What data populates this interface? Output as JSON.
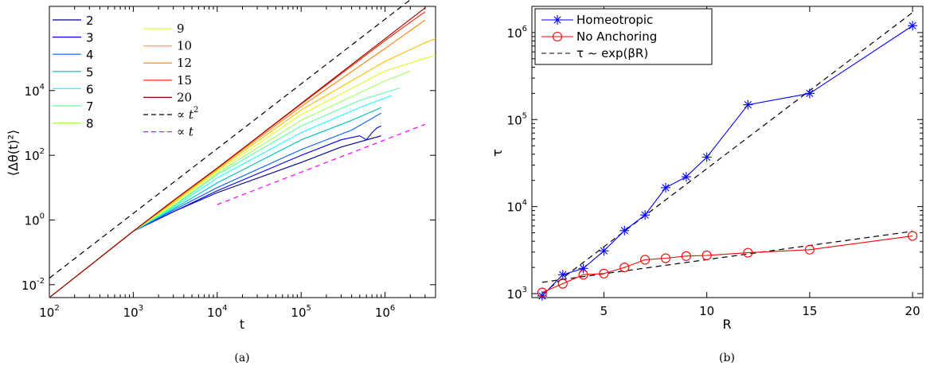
{
  "chart_data": [
    {
      "type": "line",
      "panel": "a",
      "caption": "(a)",
      "xlabel": "t",
      "ylabel": "⟨Δθ(t)²⟩",
      "xscale": "log",
      "yscale": "log",
      "xlim": [
        100,
        4000000
      ],
      "ylim": [
        0.004,
        4000000
      ],
      "x_ticks": [
        {
          "base": "10",
          "exp": "2",
          "value": 100
        },
        {
          "base": "10",
          "exp": "3",
          "value": 1000
        },
        {
          "base": "10",
          "exp": "4",
          "value": 10000
        },
        {
          "base": "10",
          "exp": "5",
          "value": 100000
        },
        {
          "base": "10",
          "exp": "6",
          "value": 1000000
        }
      ],
      "y_ticks": [
        {
          "base": "10",
          "exp": "-2",
          "value": 0.01
        },
        {
          "base": "10",
          "exp": "0",
          "value": 1
        },
        {
          "base": "10",
          "exp": "2",
          "value": 100
        },
        {
          "base": "10",
          "exp": "4",
          "value": 10000
        }
      ],
      "legend_placement": "top-left",
      "legend_col1": [
        "2",
        "3",
        "4",
        "5",
        "6",
        "7",
        "8"
      ],
      "legend_col2": [
        "9",
        "10",
        "12",
        "15",
        "20"
      ],
      "series": [
        {
          "name": "2",
          "color": "#00008f",
          "x": [
            100,
            1000,
            3000,
            10000,
            100000,
            300000,
            900000
          ],
          "y": [
            0.004,
            0.45,
            1.8,
            7,
            60,
            180,
            400
          ]
        },
        {
          "name": "3",
          "color": "#0000ff",
          "x": [
            100,
            1000,
            3000,
            10000,
            100000,
            300000,
            500000,
            600000,
            700000,
            800000,
            900000
          ],
          "y": [
            0.004,
            0.45,
            1.8,
            8,
            100,
            300,
            400,
            300,
            500,
            700,
            800
          ]
        },
        {
          "name": "4",
          "color": "#005fff",
          "x": [
            100,
            1000,
            3000,
            10000,
            100000,
            400000,
            900000
          ],
          "y": [
            0.004,
            0.45,
            2,
            10,
            150,
            600,
            2000
          ]
        },
        {
          "name": "5",
          "color": "#00bfbf",
          "x": [
            100,
            1000,
            3000,
            10000,
            100000,
            400000,
            900000
          ],
          "y": [
            0.004,
            0.45,
            2.2,
            14,
            300,
            1200,
            3000
          ]
        },
        {
          "name": "6",
          "color": "#1fffff",
          "x": [
            100,
            1000,
            3000,
            10000,
            100000,
            500000,
            1200000
          ],
          "y": [
            0.004,
            0.45,
            2.4,
            20,
            500,
            3000,
            7000
          ]
        },
        {
          "name": "7",
          "color": "#60ff9f",
          "x": [
            100,
            1000,
            3000,
            10000,
            100000,
            500000,
            1500000
          ],
          "y": [
            0.004,
            0.45,
            2.6,
            25,
            800,
            5000,
            12000
          ]
        },
        {
          "name": "8",
          "color": "#9fff60",
          "x": [
            100,
            1000,
            3000,
            10000,
            100000,
            1000000,
            2000000
          ],
          "y": [
            0.004,
            0.45,
            2.8,
            28,
            1200,
            20000,
            40000
          ]
        },
        {
          "name": "9",
          "color": "#dfff20",
          "x": [
            100,
            1000,
            3000,
            10000,
            100000,
            1000000,
            3000000,
            4000000
          ],
          "y": [
            0.004,
            0.45,
            3.2,
            32,
            1800,
            40000,
            100000,
            120000
          ]
        },
        {
          "name": "10",
          "color": "#ffbf00",
          "x": [
            100,
            1000,
            3000,
            10000,
            100000,
            1000000,
            3000000,
            4000000
          ],
          "y": [
            0.004,
            0.45,
            3.5,
            35,
            2500,
            80000,
            300000,
            400000
          ]
        },
        {
          "name": "12",
          "color": "#ff7f00",
          "x": [
            100,
            1000,
            3000,
            10000,
            100000,
            1000000,
            3000000
          ],
          "y": [
            0.004,
            0.45,
            3.8,
            38,
            3200,
            200000,
            1500000
          ]
        },
        {
          "name": "15",
          "color": "#ff1f00",
          "x": [
            100,
            1000,
            3000,
            10000,
            100000,
            1000000,
            2000000,
            3000000
          ],
          "y": [
            0.004,
            0.45,
            4,
            40,
            3800,
            350000,
            1300000,
            2700000
          ]
        },
        {
          "name": "20",
          "color": "#8f0000",
          "x": [
            100,
            1000,
            3000,
            10000,
            100000,
            1000000,
            3000000
          ],
          "y": [
            0.004,
            0.45,
            4,
            40,
            4000,
            400000,
            3600000
          ]
        }
      ],
      "reference_lines": [
        {
          "label": "∝",
          "var": "t",
          "exp": "2",
          "color": "#000000",
          "dash": "7,5",
          "x": [
            100,
            3000000
          ],
          "y": [
            0.016,
            14400000
          ]
        },
        {
          "label": "∝",
          "var": "t",
          "exp": "",
          "color": "#ff00ff",
          "dash": "6,5",
          "x": [
            10000,
            3000000
          ],
          "y": [
            3,
            900
          ]
        }
      ]
    },
    {
      "type": "line",
      "panel": "b",
      "caption": "(b)",
      "xlabel": "R",
      "ylabel": "τ",
      "xscale": "linear",
      "yscale": "log",
      "xlim": [
        1.5,
        20.5
      ],
      "ylim": [
        900,
        2000000
      ],
      "x_ticks": [
        5,
        10,
        15,
        20
      ],
      "y_ticks": [
        {
          "base": "10",
          "exp": "3",
          "value": 1000
        },
        {
          "base": "10",
          "exp": "4",
          "value": 10000
        },
        {
          "base": "10",
          "exp": "5",
          "value": 100000
        },
        {
          "base": "10",
          "exp": "6",
          "value": 1000000
        }
      ],
      "legend_placement": "top-left",
      "series": [
        {
          "name": "Homeotropic",
          "color": "#0000ff",
          "marker": "asterisk",
          "x": [
            2,
            3,
            4,
            5,
            6,
            7,
            8,
            9,
            10,
            12,
            15,
            20
          ],
          "y": [
            940,
            1650,
            1950,
            3100,
            5300,
            8000,
            16500,
            22000,
            37000,
            148000,
            200000,
            1200000
          ]
        },
        {
          "name": "No Anchoring",
          "color": "#ff0000",
          "marker": "circle",
          "x": [
            2,
            3,
            4,
            5,
            6,
            7,
            8,
            9,
            10,
            12,
            15,
            20
          ],
          "y": [
            1030,
            1300,
            1650,
            1700,
            2000,
            2450,
            2550,
            2700,
            2750,
            2950,
            3200,
            4600
          ]
        }
      ],
      "fits": [
        {
          "name": "τ ∼ exp(βR)",
          "color": "#000000",
          "dash": "7,5",
          "x": [
            2,
            20
          ],
          "y": [
            1000,
            1700000
          ]
        },
        {
          "color": "#000000",
          "dash": "7,5",
          "x": [
            2,
            20
          ],
          "y": [
            1350,
            5200
          ]
        }
      ]
    }
  ]
}
